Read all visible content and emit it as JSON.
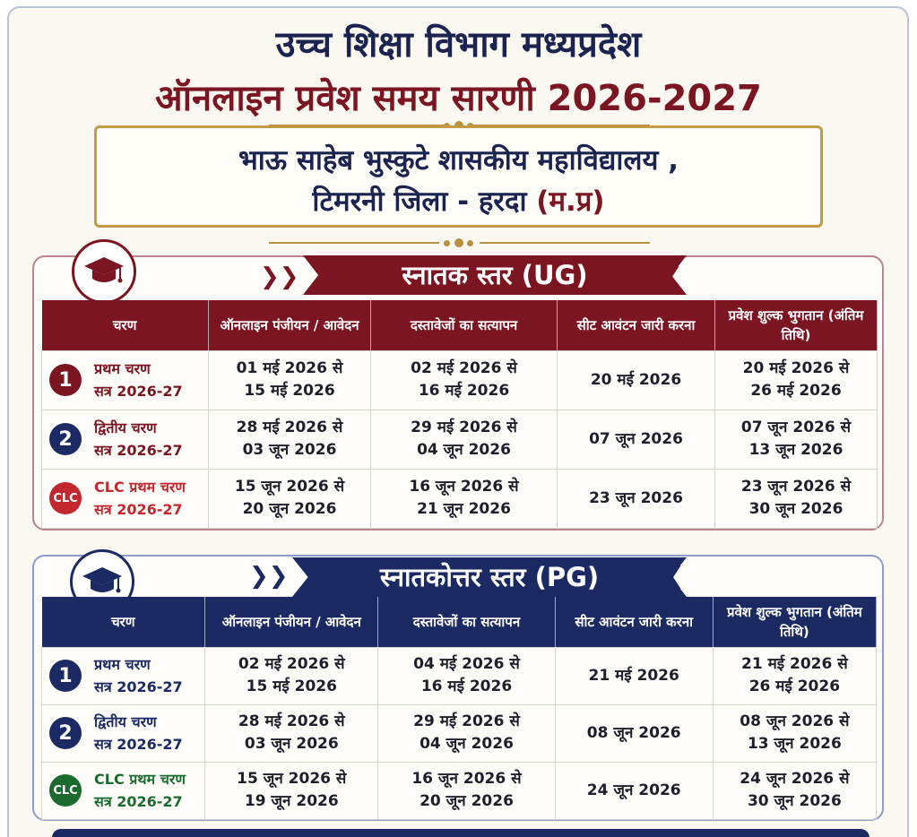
{
  "header": {
    "title_line1": "उच्च शिक्षा विभाग मध्यप्रदेश",
    "title_line2": "ऑनलाइन प्रवेश समय सारणी 2026-2027"
  },
  "college": {
    "line1": "भाऊ साहेब भुस्कुटे शासकीय महाविद्यालय ,",
    "line2_main": "टिमरनी जिला - हरदा ",
    "line2_accent": "(म.प्र)"
  },
  "columns": [
    "चरण",
    "ऑनलाइन पंजीयन / आवेदन",
    "दस्तावेजों का सत्यापन",
    "सीट आवंटन जारी करना",
    "प्रवेश शुल्क भुगतान (अंतिम तिथि)"
  ],
  "ug": {
    "heading": "स्नातक स्तर (UG)",
    "rows": [
      {
        "badge": "1",
        "phase": "प्रथम चरण",
        "session": "सत्र 2026-27",
        "reg_from": "01 मई 2026 से",
        "reg_to": "15 मई 2026",
        "ver_from": "02 मई 2026 से",
        "ver_to": "16 मई 2026",
        "seat": "20 मई 2026",
        "fee_from": "20 मई 2026 से",
        "fee_to": "26 मई 2026"
      },
      {
        "badge": "2",
        "phase": "द्वितीय चरण",
        "session": "सत्र 2026-27",
        "reg_from": "28 मई 2026 से",
        "reg_to": "03 जून 2026",
        "ver_from": "29 मई 2026 से",
        "ver_to": "04 जून 2026",
        "seat": "07 जून 2026",
        "fee_from": "07 जून 2026 से",
        "fee_to": "13 जून 2026"
      },
      {
        "badge": "CLC",
        "phase": "CLC प्रथम चरण",
        "session": "सत्र 2026-27",
        "reg_from": "15 जून 2026 से",
        "reg_to": "20 जून 2026",
        "ver_from": "16 जून 2026 से",
        "ver_to": "21 जून 2026",
        "seat": "23 जून 2026",
        "fee_from": "23 जून 2026 से",
        "fee_to": "30 जून 2026"
      }
    ]
  },
  "pg": {
    "heading": "स्नातकोत्तर स्तर (PG)",
    "rows": [
      {
        "badge": "1",
        "phase": "प्रथम चरण",
        "session": "सत्र 2026-27",
        "reg_from": "02 मई 2026 से",
        "reg_to": "15 मई 2026",
        "ver_from": "04 मई 2026 से",
        "ver_to": "16 मई 2026",
        "seat": "21 मई 2026",
        "fee_from": "21 मई 2026 से",
        "fee_to": "26 मई 2026"
      },
      {
        "badge": "2",
        "phase": "द्वितीय चरण",
        "session": "सत्र 2026-27",
        "reg_from": "28 मई 2026 से",
        "reg_to": "03 जून 2026",
        "ver_from": "29 मई 2026 से",
        "ver_to": "04 जून 2026",
        "seat": "08 जून 2026",
        "fee_from": "08 जून 2026 से",
        "fee_to": "13 जून 2026"
      },
      {
        "badge": "CLC",
        "phase": "CLC प्रथम चरण",
        "session": "सत्र 2026-27",
        "reg_from": "15 जून 2026 से",
        "reg_to": "19 जून 2026",
        "ver_from": "16 जून 2026 से",
        "ver_to": "20 जून 2026",
        "seat": "24 जून 2026",
        "fee_from": "24 जून 2026 से",
        "fee_to": "30 जून 2026"
      }
    ]
  },
  "colors": {
    "maroon": "#7b1522",
    "navy": "#1b2a63",
    "gold": "#c59a46",
    "clc_red": "#c1272d",
    "clc_green": "#1b6b2f"
  },
  "icons": {
    "section_icon": "graduation-cap-icon"
  }
}
